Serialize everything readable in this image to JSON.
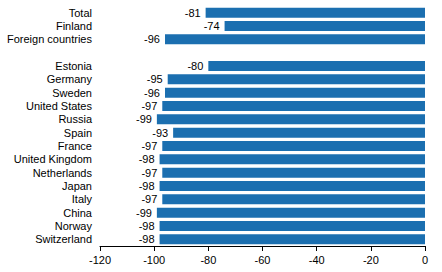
{
  "chart_data": {
    "type": "bar",
    "orientation": "horizontal",
    "categories": [
      "Total",
      "Finland",
      "Foreign countries",
      null,
      "Estonia",
      "Germany",
      "Sweden",
      "United States",
      "Russia",
      "Spain",
      "France",
      "United Kingdom",
      "Netherlands",
      "Japan",
      "Italy",
      "China",
      "Norway",
      "Switzerland"
    ],
    "values": [
      -81,
      -74,
      -96,
      null,
      -80,
      -95,
      -96,
      -97,
      -99,
      -93,
      -97,
      -98,
      -97,
      -98,
      -97,
      -99,
      -98,
      -98
    ],
    "color": "#1b6fb0",
    "xlim": [
      -120,
      0
    ],
    "xticks": [
      -120,
      -100,
      -80,
      -60,
      -40,
      -20,
      0
    ],
    "grid": false,
    "data_labels": true
  }
}
